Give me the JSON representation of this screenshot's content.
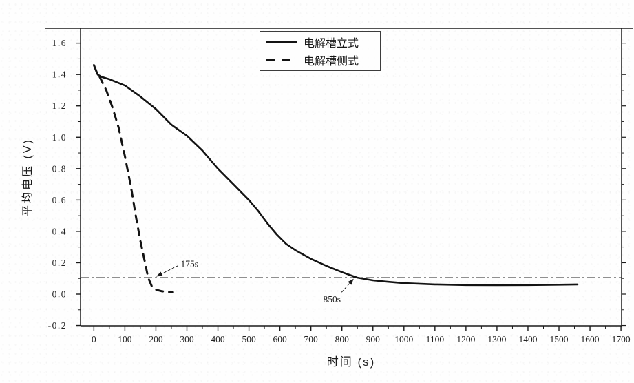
{
  "figure": {
    "background": "#fefefe",
    "ink_color": "#1a1a1a"
  },
  "chart_data": {
    "type": "line",
    "title": "",
    "xlabel": "时间 (s)",
    "ylabel": "平均电压 (V)",
    "xlim": [
      -43,
      1702
    ],
    "ylim": [
      -0.202,
      1.695
    ],
    "x_ticks_major": [
      0,
      100,
      200,
      300,
      400,
      500,
      600,
      700,
      800,
      900,
      1000,
      1100,
      1200,
      1300,
      1400,
      1500,
      1600,
      1700
    ],
    "x_tick_minor_step": 50,
    "y_ticks_major": [
      -0.2,
      0.0,
      0.2,
      0.4,
      0.6,
      0.8,
      1.0,
      1.2,
      1.4,
      1.6
    ],
    "y_tick_minor_step": 0.1,
    "grid": "off",
    "legend_position": "top-center",
    "series": [
      {
        "name": "电解槽立式",
        "line_style": "solid",
        "color": "#131313",
        "points": [
          [
            0,
            1.46
          ],
          [
            6,
            1.43
          ],
          [
            12,
            1.4
          ],
          [
            25,
            1.385
          ],
          [
            50,
            1.37
          ],
          [
            100,
            1.33
          ],
          [
            150,
            1.26
          ],
          [
            200,
            1.18
          ],
          [
            250,
            1.08
          ],
          [
            300,
            1.01
          ],
          [
            350,
            0.915
          ],
          [
            400,
            0.8
          ],
          [
            450,
            0.7
          ],
          [
            500,
            0.6
          ],
          [
            530,
            0.53
          ],
          [
            560,
            0.45
          ],
          [
            590,
            0.38
          ],
          [
            620,
            0.32
          ],
          [
            650,
            0.28
          ],
          [
            700,
            0.225
          ],
          [
            750,
            0.18
          ],
          [
            800,
            0.14
          ],
          [
            850,
            0.105
          ],
          [
            900,
            0.088
          ],
          [
            950,
            0.078
          ],
          [
            1000,
            0.07
          ],
          [
            1100,
            0.062
          ],
          [
            1200,
            0.058
          ],
          [
            1300,
            0.057
          ],
          [
            1400,
            0.058
          ],
          [
            1500,
            0.06
          ],
          [
            1560,
            0.062
          ]
        ]
      },
      {
        "name": "电解槽侧式",
        "line_style": "dashed",
        "color": "#131313",
        "points": [
          [
            0,
            1.46
          ],
          [
            8,
            1.42
          ],
          [
            20,
            1.38
          ],
          [
            40,
            1.3
          ],
          [
            60,
            1.19
          ],
          [
            80,
            1.06
          ],
          [
            100,
            0.88
          ],
          [
            120,
            0.68
          ],
          [
            135,
            0.5
          ],
          [
            150,
            0.34
          ],
          [
            165,
            0.2
          ],
          [
            175,
            0.105
          ],
          [
            188,
            0.045
          ],
          [
            200,
            0.028
          ],
          [
            220,
            0.018
          ],
          [
            240,
            0.013
          ],
          [
            255,
            0.012
          ]
        ]
      }
    ],
    "reference_line": {
      "y": 0.105,
      "style": "dash-dot",
      "color": "#222222"
    },
    "annotations": [
      {
        "label": "175s",
        "anchor": "start",
        "text_at": [
          280,
          0.19
        ],
        "arrow_from": [
          272,
          0.182
        ],
        "arrow_to": [
          201,
          0.112
        ]
      },
      {
        "label": "850s",
        "anchor": "middle",
        "text_at": [
          768,
          -0.035
        ],
        "arrow_from": [
          799,
          0.012
        ],
        "arrow_to": [
          838,
          0.098
        ]
      }
    ]
  }
}
